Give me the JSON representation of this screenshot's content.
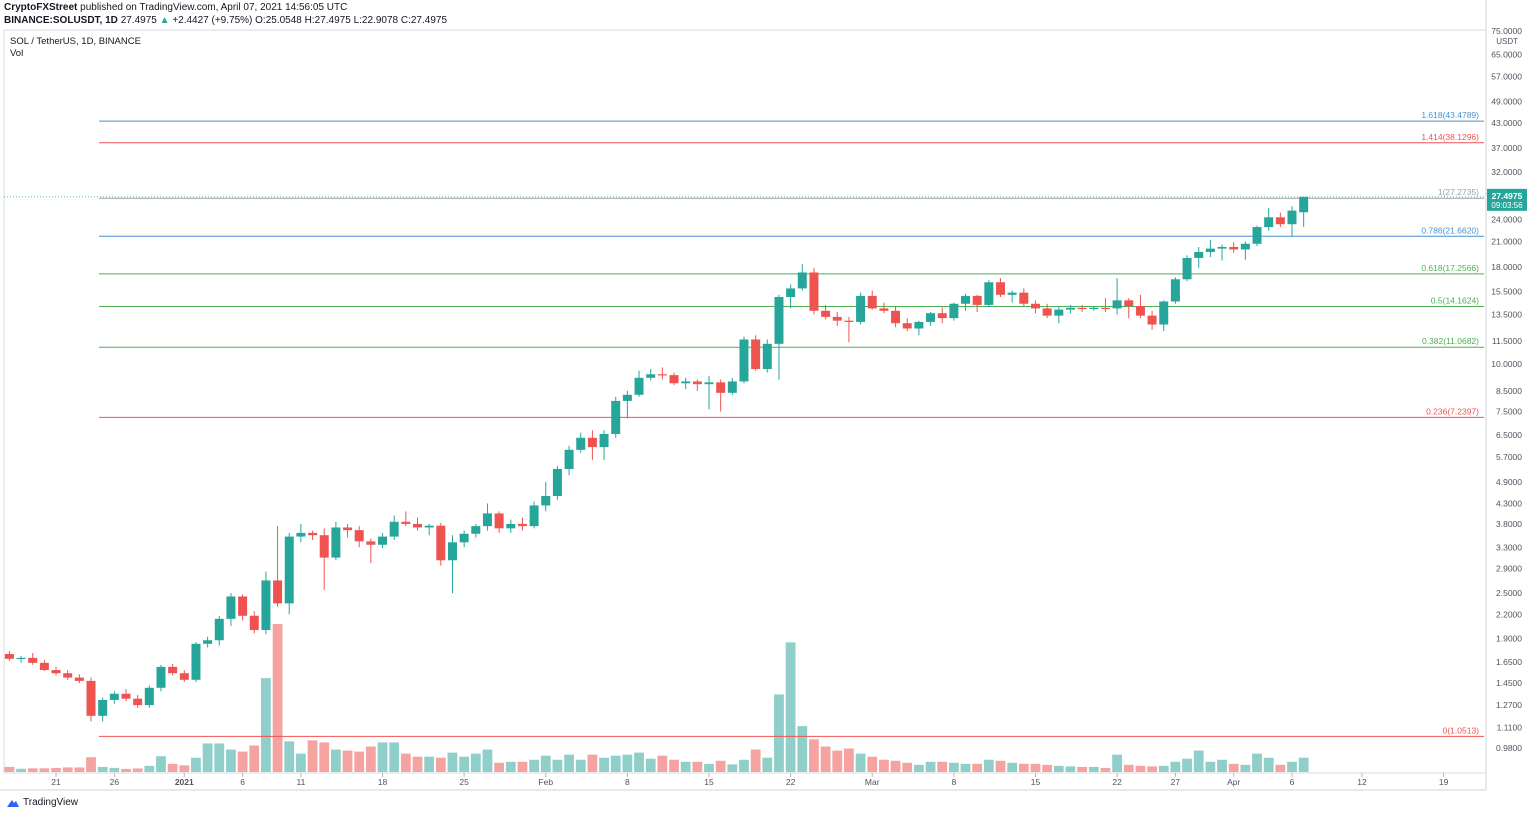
{
  "header": {
    "line1_author": "CryptoFXStreet",
    "line1_rest": "published on TradingView.com, April 07, 2021 14:56:05 UTC",
    "line2_symbol": "BINANCE:SOLUSDT, 1D",
    "line2_last": "27.4975",
    "line2_change": "+2.4427 (+9.75%)",
    "line2_o": "O:25.0548",
    "line2_h": "H:27.4975",
    "line2_l": "L:22.9078",
    "line2_c": "C:27.4975"
  },
  "symbol_title": "SOL / TetherUS, 1D, BINANCE",
  "volume_label": "Vol",
  "branding": "TradingView",
  "colors": {
    "up": "#26a69a",
    "down": "#ef5350",
    "vol_up": "#90cfc9",
    "vol_down": "#f5a3a1",
    "fib_blue": "#4a8fd0",
    "fib_red": "#ef5350",
    "fib_green": "#4caf50",
    "fib_gray": "#9aa0a6"
  },
  "chart_data": {
    "type": "candlestick",
    "title": "SOL / TetherUS, 1D, BINANCE",
    "y_scale": "log",
    "ylim": [
      0.9,
      75.0
    ],
    "currency_label": "USDT",
    "y_ticks": [
      "75.0000",
      "65.0000",
      "57.0000",
      "49.0000",
      "43.0000",
      "37.0000",
      "32.0000",
      "28.0000",
      "24.0000",
      "21.0000",
      "18.0000",
      "15.5000",
      "13.5000",
      "11.5000",
      "10.0000",
      "8.5000",
      "7.5000",
      "6.5000",
      "5.7000",
      "4.9000",
      "4.3000",
      "3.8000",
      "3.3000",
      "2.9000",
      "2.5000",
      "2.2000",
      "1.9000",
      "1.6500",
      "1.4500",
      "1.2700",
      "1.1100",
      "0.9800"
    ],
    "x_ticks": [
      {
        "label": "21",
        "i": 4
      },
      {
        "label": "26",
        "i": 9
      },
      {
        "label": "2021",
        "i": 15
      },
      {
        "label": "6",
        "i": 20
      },
      {
        "label": "11",
        "i": 25
      },
      {
        "label": "18",
        "i": 32
      },
      {
        "label": "25",
        "i": 39
      },
      {
        "label": "Feb",
        "i": 46
      },
      {
        "label": "8",
        "i": 53
      },
      {
        "label": "15",
        "i": 60
      },
      {
        "label": "22",
        "i": 67
      },
      {
        "label": "Mar",
        "i": 74
      },
      {
        "label": "8",
        "i": 81
      },
      {
        "label": "15",
        "i": 88
      },
      {
        "label": "22",
        "i": 95
      },
      {
        "label": "27",
        "i": 100
      },
      {
        "label": "Apr",
        "i": 105
      },
      {
        "label": "6",
        "i": 110
      },
      {
        "label": "12",
        "i": 116
      },
      {
        "label": "19",
        "i": 123
      }
    ],
    "last_price": "27.4975",
    "countdown": "09:03:56",
    "fib_levels": [
      {
        "label": "1.618(43.4789)",
        "value": 43.4789,
        "color": "blue"
      },
      {
        "label": "1.414(38.1296)",
        "value": 38.1296,
        "color": "red"
      },
      {
        "label": "1(27.2735)",
        "value": 27.2735,
        "color": "gray"
      },
      {
        "label": "0.786(21.6620)",
        "value": 21.662,
        "color": "blue"
      },
      {
        "label": "0.618(17.2566)",
        "value": 17.2566,
        "color": "green"
      },
      {
        "label": "0.5(14.1624)",
        "value": 14.1624,
        "color": "green"
      },
      {
        "label": "0.382(11.0682)",
        "value": 11.0682,
        "color": "green"
      },
      {
        "label": "0.236(7.2397)",
        "value": 7.2397,
        "color": "red"
      },
      {
        "label": "0(1.0513)",
        "value": 1.0513,
        "color": "red"
      }
    ],
    "candles": [
      [
        1.73,
        1.76,
        1.66,
        1.68
      ],
      [
        1.68,
        1.71,
        1.64,
        1.69
      ],
      [
        1.69,
        1.74,
        1.62,
        1.64
      ],
      [
        1.64,
        1.67,
        1.56,
        1.57
      ],
      [
        1.57,
        1.6,
        1.52,
        1.54
      ],
      [
        1.54,
        1.57,
        1.48,
        1.5
      ],
      [
        1.5,
        1.53,
        1.45,
        1.47
      ],
      [
        1.47,
        1.5,
        1.15,
        1.19
      ],
      [
        1.19,
        1.33,
        1.15,
        1.31
      ],
      [
        1.31,
        1.38,
        1.28,
        1.36
      ],
      [
        1.36,
        1.4,
        1.3,
        1.32
      ],
      [
        1.32,
        1.35,
        1.25,
        1.27
      ],
      [
        1.27,
        1.43,
        1.25,
        1.41
      ],
      [
        1.41,
        1.62,
        1.38,
        1.6
      ],
      [
        1.6,
        1.63,
        1.52,
        1.54
      ],
      [
        1.54,
        1.57,
        1.46,
        1.48
      ],
      [
        1.48,
        1.86,
        1.46,
        1.84
      ],
      [
        1.84,
        1.92,
        1.8,
        1.88
      ],
      [
        1.88,
        2.18,
        1.82,
        2.14
      ],
      [
        2.14,
        2.5,
        2.05,
        2.45
      ],
      [
        2.45,
        2.48,
        2.12,
        2.18
      ],
      [
        2.18,
        2.24,
        1.96,
        2.0
      ],
      [
        2.0,
        2.85,
        1.95,
        2.7
      ],
      [
        2.7,
        3.75,
        2.3,
        2.35
      ],
      [
        2.35,
        3.6,
        2.2,
        3.52
      ],
      [
        3.52,
        3.8,
        3.4,
        3.6
      ],
      [
        3.6,
        3.65,
        3.45,
        3.55
      ],
      [
        3.55,
        3.7,
        2.55,
        3.1
      ],
      [
        3.1,
        3.85,
        3.05,
        3.72
      ],
      [
        3.72,
        3.8,
        3.5,
        3.66
      ],
      [
        3.66,
        3.75,
        3.3,
        3.42
      ],
      [
        3.42,
        3.48,
        3.0,
        3.35
      ],
      [
        3.35,
        3.6,
        3.28,
        3.52
      ],
      [
        3.52,
        4.0,
        3.45,
        3.85
      ],
      [
        3.85,
        4.1,
        3.75,
        3.8
      ],
      [
        3.8,
        3.95,
        3.65,
        3.72
      ],
      [
        3.72,
        3.8,
        3.55,
        3.76
      ],
      [
        3.76,
        3.82,
        2.95,
        3.05
      ],
      [
        3.05,
        3.55,
        2.5,
        3.4
      ],
      [
        3.4,
        3.65,
        3.3,
        3.58
      ],
      [
        3.58,
        3.8,
        3.5,
        3.75
      ],
      [
        3.75,
        4.3,
        3.65,
        4.05
      ],
      [
        4.05,
        4.1,
        3.6,
        3.7
      ],
      [
        3.7,
        3.9,
        3.6,
        3.8
      ],
      [
        3.8,
        3.95,
        3.65,
        3.75
      ],
      [
        3.75,
        4.35,
        3.7,
        4.25
      ],
      [
        4.25,
        4.9,
        4.1,
        4.5
      ],
      [
        4.5,
        5.4,
        4.4,
        5.3
      ],
      [
        5.3,
        6.1,
        5.1,
        5.95
      ],
      [
        5.95,
        6.6,
        5.85,
        6.4
      ],
      [
        6.4,
        6.7,
        5.6,
        6.05
      ],
      [
        6.05,
        6.7,
        5.6,
        6.55
      ],
      [
        6.55,
        8.2,
        6.4,
        8.0
      ],
      [
        8.0,
        8.5,
        7.2,
        8.3
      ],
      [
        8.3,
        9.6,
        8.2,
        9.2
      ],
      [
        9.2,
        9.7,
        9.05,
        9.4
      ],
      [
        9.4,
        9.8,
        9.1,
        9.35
      ],
      [
        9.35,
        9.5,
        8.8,
        8.9
      ],
      [
        8.9,
        9.2,
        8.6,
        9.0
      ],
      [
        9.0,
        9.1,
        8.5,
        8.85
      ],
      [
        8.85,
        9.3,
        7.6,
        8.95
      ],
      [
        8.95,
        9.1,
        7.5,
        8.4
      ],
      [
        8.4,
        9.2,
        8.3,
        9.0
      ],
      [
        9.0,
        11.8,
        8.9,
        11.6
      ],
      [
        11.6,
        11.9,
        9.6,
        9.7
      ],
      [
        9.7,
        11.6,
        9.5,
        11.3
      ],
      [
        11.3,
        15.2,
        9.1,
        15.0
      ],
      [
        15.0,
        16.2,
        14.0,
        15.8
      ],
      [
        15.8,
        18.3,
        15.6,
        17.4
      ],
      [
        17.4,
        17.9,
        13.5,
        13.8
      ],
      [
        13.8,
        14.3,
        13.1,
        13.3
      ],
      [
        13.3,
        13.7,
        12.6,
        13.0
      ],
      [
        13.0,
        13.3,
        11.4,
        12.9
      ],
      [
        12.9,
        15.4,
        12.7,
        15.1
      ],
      [
        15.1,
        15.6,
        13.9,
        14.0
      ],
      [
        14.0,
        14.5,
        13.6,
        13.8
      ],
      [
        13.8,
        14.2,
        12.5,
        12.8
      ],
      [
        12.8,
        13.2,
        12.2,
        12.4
      ],
      [
        12.4,
        13.0,
        11.9,
        12.9
      ],
      [
        12.9,
        13.7,
        12.6,
        13.6
      ],
      [
        13.6,
        14.1,
        12.8,
        13.2
      ],
      [
        13.2,
        14.5,
        13.0,
        14.4
      ],
      [
        14.4,
        15.3,
        13.8,
        15.1
      ],
      [
        15.1,
        15.2,
        13.7,
        14.3
      ],
      [
        14.3,
        16.6,
        14.1,
        16.4
      ],
      [
        16.4,
        16.8,
        15.0,
        15.2
      ],
      [
        15.2,
        15.6,
        14.5,
        15.4
      ],
      [
        15.4,
        15.8,
        14.2,
        14.4
      ],
      [
        14.4,
        14.7,
        13.6,
        14.0
      ],
      [
        14.0,
        14.4,
        13.2,
        13.4
      ],
      [
        13.4,
        14.2,
        12.8,
        13.9
      ],
      [
        13.9,
        14.3,
        13.6,
        14.05
      ],
      [
        14.05,
        14.3,
        13.7,
        14.0
      ],
      [
        14.0,
        14.2,
        13.8,
        14.05
      ],
      [
        14.05,
        14.9,
        13.7,
        14.0
      ],
      [
        14.0,
        16.8,
        13.5,
        14.7
      ],
      [
        14.7,
        14.9,
        13.2,
        14.2
      ],
      [
        14.2,
        15.2,
        13.2,
        13.4
      ],
      [
        13.4,
        13.8,
        12.3,
        12.7
      ],
      [
        12.7,
        14.7,
        12.2,
        14.6
      ],
      [
        14.6,
        16.9,
        14.4,
        16.7
      ],
      [
        16.7,
        19.3,
        16.5,
        19.0
      ],
      [
        19.0,
        20.3,
        17.9,
        19.7
      ],
      [
        19.7,
        21.2,
        19.1,
        20.1
      ],
      [
        20.1,
        20.6,
        18.7,
        20.3
      ],
      [
        20.3,
        20.9,
        19.6,
        20.0
      ],
      [
        20.0,
        21.0,
        18.8,
        20.7
      ],
      [
        20.7,
        23.1,
        20.4,
        22.9
      ],
      [
        22.9,
        25.7,
        22.4,
        24.3
      ],
      [
        24.3,
        25.0,
        22.9,
        23.3
      ],
      [
        23.3,
        26.0,
        21.6,
        25.3
      ],
      [
        25.05,
        27.5,
        22.91,
        27.5
      ]
    ],
    "volumes": [
      0.5,
      0.32,
      0.36,
      0.36,
      0.4,
      0.45,
      0.45,
      1.45,
      0.5,
      0.4,
      0.3,
      0.35,
      0.6,
      1.55,
      0.8,
      0.65,
      1.4,
      2.8,
      2.8,
      2.2,
      2.0,
      2.6,
      9.2,
      14.5,
      3.0,
      1.8,
      3.1,
      2.9,
      2.2,
      2.1,
      2.0,
      2.5,
      2.9,
      2.9,
      1.8,
      1.5,
      1.5,
      1.4,
      1.9,
      1.5,
      1.8,
      2.2,
      0.9,
      1.0,
      1.0,
      1.2,
      1.6,
      1.2,
      1.7,
      1.2,
      1.7,
      1.4,
      1.6,
      1.7,
      1.9,
      1.3,
      1.6,
      1.2,
      1.0,
      1.0,
      0.8,
      1.1,
      0.75,
      1.2,
      2.2,
      1.4,
      7.6,
      12.7,
      4.5,
      3.2,
      2.5,
      2.1,
      2.3,
      1.8,
      1.5,
      1.2,
      1.1,
      0.9,
      0.7,
      1.0,
      1.0,
      0.9,
      0.8,
      0.8,
      1.2,
      1.1,
      0.9,
      0.8,
      0.8,
      0.7,
      0.6,
      0.55,
      0.5,
      0.5,
      0.4,
      1.7,
      0.7,
      0.6,
      0.55,
      0.6,
      1.0,
      1.3,
      2.1,
      1.0,
      1.2,
      0.8,
      0.7,
      1.8,
      1.4,
      0.7,
      1.0,
      1.4
    ]
  }
}
